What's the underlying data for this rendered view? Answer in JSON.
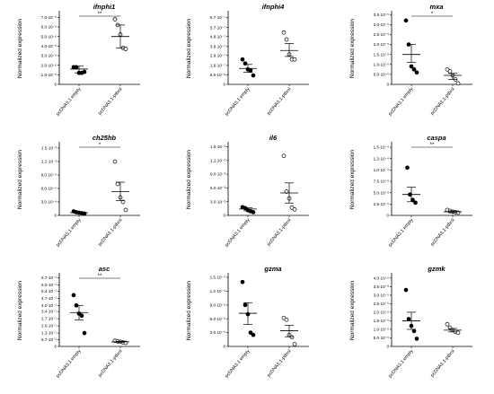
{
  "figure": {
    "categories": [
      "pcDNA3.1 empty",
      "pcDNA3.1-ptbrsl"
    ],
    "ylabel": "Normalized expression"
  },
  "chart_data": [
    {
      "type": "scatter",
      "title": "ifnphi1",
      "ylabel": "Normalized expression",
      "categories": [
        "pcDNA3.1 empty",
        "pcDNA3.1-ptbrsl"
      ],
      "yticks": [
        "1.0·10⁻⁶",
        "2.0·10⁻⁶",
        "3.0·10⁻⁶",
        "4.0·10⁻⁶",
        "5.0·10⁻⁶",
        "6.0·10⁻⁶",
        "7.0·10⁻⁶"
      ],
      "ylim": [
        0,
        7.5e-06
      ],
      "tick_values": [
        1e-06,
        2e-06,
        3e-06,
        4e-06,
        5e-06,
        6e-06,
        7e-06
      ],
      "significance": "**",
      "series": [
        {
          "values": [
            1.8e-06,
            1.8e-06,
            1.2e-06,
            1.2e-06,
            1.3e-06
          ],
          "mean": 1.6e-06,
          "sem_low": 1.2e-06,
          "sem_high": 1.9e-06,
          "filled": true
        },
        {
          "values": [
            6.8e-06,
            6.2e-06,
            5.2e-06,
            3.8e-06,
            3.7e-06
          ],
          "mean": 5e-06,
          "sem_low": 3.8e-06,
          "sem_high": 6.2e-06,
          "filled": false
        }
      ]
    },
    {
      "type": "scatter",
      "title": "ifnphi4",
      "ylabel": "Normalized expression",
      "categories": [
        "pcDNA3.1 empty",
        "pcDNA3.1-ptbrsl"
      ],
      "yticks": [
        "9.5·10⁻⁸",
        "1.9·10⁻⁷",
        "2.9·10⁻⁷",
        "3.8·10⁻⁷",
        "4.8·10⁻⁷",
        "5.7·10⁻⁷",
        "6.7·10⁻⁷"
      ],
      "ylim": [
        0,
        7.2e-07
      ],
      "tick_values": [
        9.5e-08,
        1.9e-07,
        2.9e-07,
        3.8e-07,
        4.8e-07,
        5.7e-07,
        6.7e-07
      ],
      "significance": "",
      "series": [
        {
          "values": [
            2.5e-07,
            2.1e-07,
            1.5e-07,
            1.4e-07,
            9e-08
          ],
          "mean": 1.6e-07,
          "sem_low": 1.2e-07,
          "sem_high": 2e-07,
          "filled": true
        },
        {
          "values": [
            5.2e-07,
            4.5e-07,
            3e-07,
            2.5e-07,
            2.5e-07
          ],
          "mean": 3.4e-07,
          "sem_low": 2.8e-07,
          "sem_high": 4.1e-07,
          "filled": false
        }
      ]
    },
    {
      "type": "scatter",
      "title": "mxa",
      "ylabel": "Normalized expression",
      "categories": [
        "pcDNA3.1 empty",
        "pcDNA3.1-ptbrsl"
      ],
      "yticks": [
        "5.0·10⁻⁶",
        "1.0·10⁻⁵",
        "1.5·10⁻⁵",
        "2.0·10⁻⁵",
        "2.5·10⁻⁵",
        "3.0·10⁻⁵",
        "3.5·10⁻⁵"
      ],
      "ylim": [
        0,
        3.6e-05
      ],
      "tick_values": [
        5e-06,
        1e-05,
        1.5e-05,
        2e-05,
        2.5e-05,
        3e-05,
        3.5e-05
      ],
      "significance": "*",
      "series": [
        {
          "values": [
            3.2e-05,
            2e-05,
            9e-06,
            7.5e-06,
            6e-06
          ],
          "mean": 1.5e-05,
          "sem_low": 1.1e-05,
          "sem_high": 2e-05,
          "filled": true
        },
        {
          "values": [
            7.5e-06,
            6.5e-06,
            4.5e-06,
            2.5e-06,
            5e-07
          ],
          "mean": 4.5e-06,
          "sem_low": 2.5e-06,
          "sem_high": 5.5e-06,
          "filled": false
        }
      ]
    },
    {
      "type": "scatter",
      "title": "ch25hb",
      "ylabel": "Normalized expression",
      "categories": [
        "pcDNA3.1 empty",
        "pcDNA3.1-ptbrsl"
      ],
      "yticks": [
        "3.0·10⁻⁴",
        "6.0·10⁻⁴",
        "9.0·10⁻⁴",
        "1.2·10⁻³",
        "1.5·10⁻³"
      ],
      "ylim": [
        0,
        0.0016
      ],
      "tick_values": [
        0.0003,
        0.0006,
        0.0009,
        0.0012,
        0.0015
      ],
      "significance": "*",
      "series": [
        {
          "values": [
            9e-05,
            7e-05,
            6e-05,
            5e-05,
            4e-05
          ],
          "mean": 6e-05,
          "sem_low": 5e-05,
          "sem_high": 7e-05,
          "filled": true
        },
        {
          "values": [
            0.0012,
            0.0007,
            0.0004,
            0.0003,
            0.00012
          ],
          "mean": 0.00053,
          "sem_low": 0.00033,
          "sem_high": 0.00074,
          "filled": false
        }
      ]
    },
    {
      "type": "scatter",
      "title": "il6",
      "ylabel": "Normalized expression",
      "categories": [
        "pcDNA3.1 empty",
        "pcDNA3.1-ptbrsl"
      ],
      "yticks": [
        "3.0·10⁻³",
        "6.0·10⁻³",
        "9.0·10⁻³",
        "1.2·10⁻²",
        "1.5·10⁻²"
      ],
      "ylim": [
        0,
        0.0157
      ],
      "tick_values": [
        0.003,
        0.006,
        0.009,
        0.012,
        0.015
      ],
      "significance": "",
      "series": [
        {
          "values": [
            0.0018,
            0.0016,
            0.0011,
            0.0009,
            0.0007
          ],
          "mean": 0.0014,
          "sem_low": 0.001,
          "sem_high": 0.0017,
          "filled": true
        },
        {
          "values": [
            0.013,
            0.0052,
            0.0037,
            0.0017,
            0.0013
          ],
          "mean": 0.0049,
          "sem_low": 0.0027,
          "sem_high": 0.0071,
          "filled": false
        }
      ]
    },
    {
      "type": "scatter",
      "title": "caspa",
      "ylabel": "Normalized expression",
      "categories": [
        "pcDNA3.1 empty",
        "pcDNA3.1-ptbrsl"
      ],
      "yticks": [
        "2.5·10⁻⁵",
        "5.0·10⁻⁵",
        "7.5·10⁻⁵",
        "1.0·10⁻⁴",
        "1.3·10⁻⁴",
        "1.5·10⁻⁴"
      ],
      "ylim": [
        0,
        0.000158
      ],
      "tick_values": [
        2.5e-05,
        5e-05,
        7.5e-05,
        0.0001,
        0.000125,
        0.00015
      ],
      "significance": "**",
      "series": [
        {
          "values": [
            0.000105,
            4.6e-05,
            3.4e-05,
            2.8e-05
          ],
          "mean": 4.6e-05,
          "sem_low": 3e-05,
          "sem_high": 6.2e-05,
          "filled": true
        },
        {
          "values": [
            1.2e-05,
            1e-05,
            8e-06,
            7e-06,
            6e-06
          ],
          "mean": 8e-06,
          "sem_low": 6e-06,
          "sem_high": 1e-05,
          "filled": false
        }
      ]
    },
    {
      "type": "scatter",
      "title": "asc",
      "ylabel": "Normalized expression",
      "categories": [
        "pcDNA3.1 empty",
        "pcDNA3.1-ptbrsl"
      ],
      "yticks": [
        "6.7·10⁻²",
        "1.3·10⁻¹",
        "2.0·10⁻¹",
        "2.7·10⁻¹",
        "3.4·10⁻¹",
        "4.0·10⁻¹",
        "4.7·10⁻¹",
        "5.4·10⁻¹",
        "6.0·10⁻¹",
        "6.7·10⁻¹"
      ],
      "ylim": [
        0,
        0.7
      ],
      "tick_values": [
        0.067,
        0.13,
        0.2,
        0.27,
        0.34,
        0.4,
        0.47,
        0.54,
        0.6,
        0.67
      ],
      "significance": "**",
      "series": [
        {
          "values": [
            0.5,
            0.4,
            0.32,
            0.3,
            0.13
          ],
          "mean": 0.33,
          "sem_low": 0.26,
          "sem_high": 0.4,
          "filled": true
        },
        {
          "values": [
            0.055,
            0.05,
            0.045,
            0.04,
            0.035
          ],
          "mean": 0.045,
          "sem_low": 0.04,
          "sem_high": 0.05,
          "filled": false
        }
      ]
    },
    {
      "type": "scatter",
      "title": "gzma",
      "ylabel": "Normalized expression",
      "categories": [
        "pcDNA3.1 empty",
        "pcDNA3.1-ptbrsl"
      ],
      "yticks": [
        "3.0·10⁻⁵",
        "6.0·10⁻⁵",
        "9.0·10⁻⁵",
        "1.2·10⁻⁴",
        "1.5·10⁻⁴"
      ],
      "ylim": [
        0,
        0.000156
      ],
      "tick_values": [
        3e-05,
        6e-05,
        9e-05,
        0.00012,
        0.00015
      ],
      "significance": "",
      "series": [
        {
          "values": [
            0.00014,
            9e-05,
            7e-05,
            3e-05,
            2.5e-05
          ],
          "mean": 7.2e-05,
          "sem_low": 4.8e-05,
          "sem_high": 9.5e-05,
          "filled": true
        },
        {
          "values": [
            6.2e-05,
            5.8e-05,
            2.5e-05,
            2e-05,
            5e-06
          ],
          "mean": 3.4e-05,
          "sem_low": 2.1e-05,
          "sem_high": 4.6e-05,
          "filled": false
        }
      ]
    },
    {
      "type": "scatter",
      "title": "gzmk",
      "ylabel": "Normalized expression",
      "categories": [
        "pcDNA3.1 empty",
        "pcDNA3.1-ptbrsl"
      ],
      "yticks": [
        "5.0·10⁻⁶",
        "1.0·10⁻⁵",
        "1.5·10⁻⁵",
        "2.0·10⁻⁵",
        "2.5·10⁻⁵",
        "3.0·10⁻⁵",
        "3.5·10⁻⁵",
        "4.0·10⁻⁵"
      ],
      "ylim": [
        0,
        4.2e-05
      ],
      "tick_values": [
        5e-06,
        1e-05,
        1.5e-05,
        2e-05,
        2.5e-05,
        3e-05,
        3.5e-05,
        4e-05
      ],
      "significance": "",
      "series": [
        {
          "values": [
            3.3e-05,
            1.6e-05,
            1.2e-05,
            9e-06,
            4.5e-06
          ],
          "mean": 1.5e-05,
          "sem_low": 1e-05,
          "sem_high": 2e-05,
          "filled": true
        },
        {
          "values": [
            1.3e-05,
            1.1e-05,
            9.5e-06,
            8.5e-06,
            8e-06
          ],
          "mean": 9.5e-06,
          "sem_low": 8.5e-06,
          "sem_high": 1.05e-05,
          "filled": false
        }
      ]
    }
  ]
}
